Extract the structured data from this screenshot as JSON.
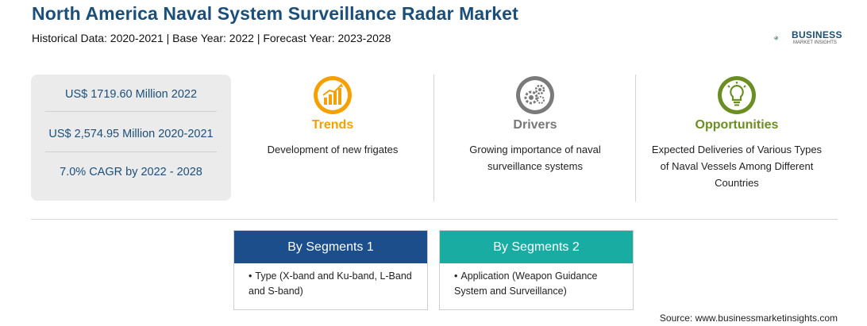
{
  "header": {
    "title": "North America Naval System Surveillance Radar Market",
    "subtitle": "Historical Data: 2020-2021 | Base Year: 2022 | Forecast Year: 2023-2028"
  },
  "logo": {
    "name": "BUSINESS",
    "tagline": "MARKET INSIGHTS"
  },
  "stats": [
    "US$ 1719.60 Million 2022",
    "US$ 2,574.95 Million 2020-2021",
    "7.0% CAGR by 2022 - 2028"
  ],
  "columns": {
    "trends": {
      "title": "Trends",
      "text": "Development of new frigates",
      "color": "#f5a000"
    },
    "drivers": {
      "title": "Drivers",
      "text": "Growing importance of naval surveillance systems",
      "color": "#777777"
    },
    "opportunities": {
      "title": "Opportunities",
      "text": "Expected Deliveries of Various Types of Naval Vessels Among Different Countries",
      "color": "#6b8e23"
    }
  },
  "segments": [
    {
      "title": "By Segments 1",
      "color": "#1b4e8a",
      "items": [
        "Type (X-band and Ku-band, L-Band and S-band)"
      ]
    },
    {
      "title": "By Segments 2",
      "color": "#19aca3",
      "items": [
        "Application (Weapon Guidance System and Surveillance)"
      ]
    }
  ],
  "source": "Source: www.businessmarketinsights.com"
}
